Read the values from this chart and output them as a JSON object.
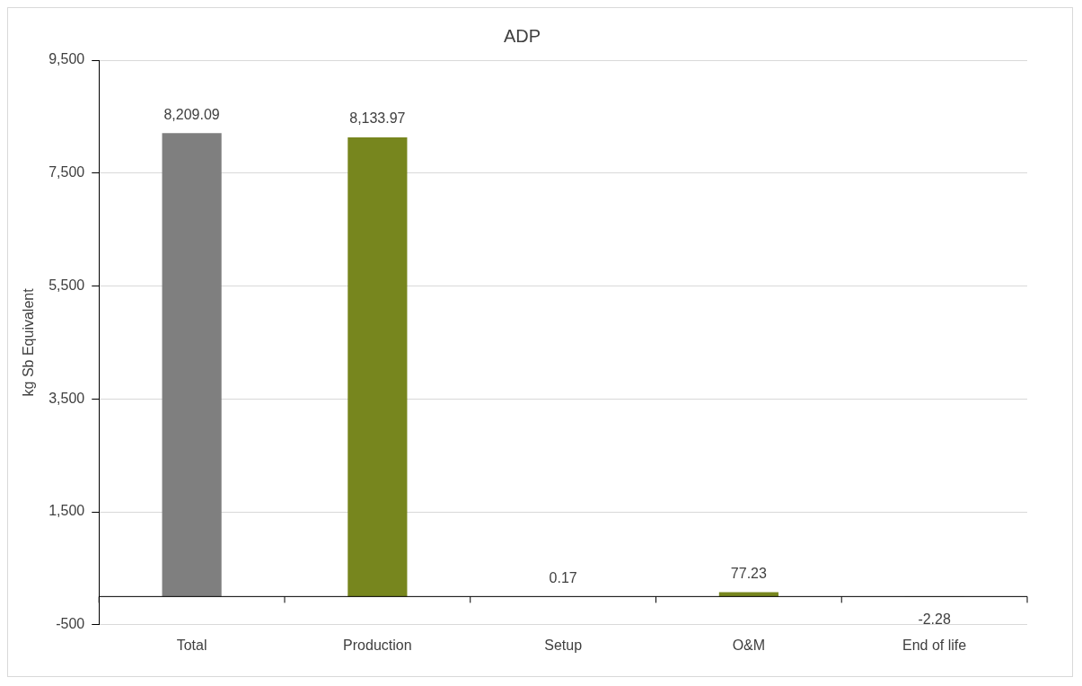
{
  "chart_data": {
    "type": "bar",
    "title": "ADP",
    "ylabel": "kg Sb Equivalent",
    "categories": [
      "Total",
      "Production",
      "Setup",
      "O&M",
      "End of life"
    ],
    "values": [
      8209.09,
      8133.97,
      0.17,
      77.23,
      -2.28
    ],
    "colors": [
      "#7f7f7f",
      "#77861e",
      "#77861e",
      "#77861e",
      "#77861e"
    ],
    "value_labels": [
      "8,209.09",
      "8,133.97",
      "0.17",
      "77.23",
      "-2.28"
    ],
    "ylim": [
      -500,
      9500
    ],
    "yticks": [
      {
        "value": -500,
        "label": "-500"
      },
      {
        "value": 1500,
        "label": "1,500"
      },
      {
        "value": 3500,
        "label": "3,500"
      },
      {
        "value": 5500,
        "label": "5,500"
      },
      {
        "value": 7500,
        "label": "7,500"
      },
      {
        "value": 9500,
        "label": "9,500"
      }
    ],
    "grid": "y",
    "legend": false
  }
}
